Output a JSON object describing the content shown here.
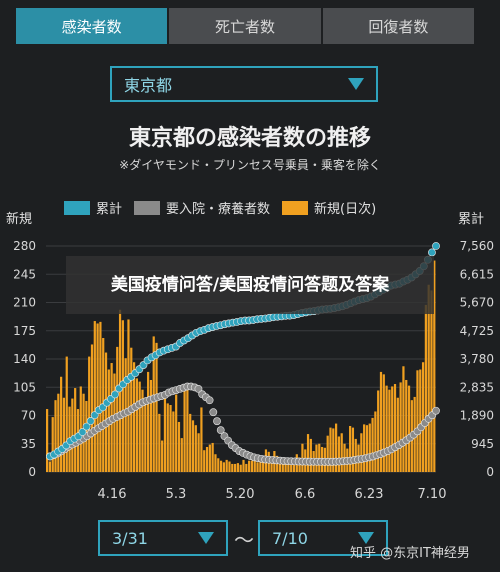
{
  "tabs": [
    {
      "label": "感染者数",
      "active": true
    },
    {
      "label": "死亡者数",
      "active": false
    },
    {
      "label": "回復者数",
      "active": false
    }
  ],
  "prefecture_select": {
    "value": "東京都"
  },
  "title": "東京都の感染者数の推移",
  "subtitle": "※ダイヤモンド・プリンセス号乗員・乗客を除く",
  "legend": [
    {
      "label": "累計",
      "color": "#2fa3bd"
    },
    {
      "label": "要入院・療養者数",
      "color": "#8a8a8a"
    },
    {
      "label": "新規(日次)",
      "color": "#f0a020"
    }
  ],
  "left_axis_title": "新規",
  "right_axis_title": "累計",
  "start_select": {
    "value": "3/31"
  },
  "range_separator": "〜",
  "end_select": {
    "value": "7/10"
  },
  "overlay_text": "美国疫情问答/美国疫情问答题及答案",
  "watermark": "知乎 @东京IT神经男",
  "chart_data": {
    "type": "bar",
    "x_ticks": [
      "4.16",
      "5.3",
      "5.20",
      "6.6",
      "6.23",
      "7.10"
    ],
    "left_axis": {
      "ticks": [
        0,
        35,
        70,
        105,
        140,
        175,
        210,
        245,
        280
      ],
      "ylim": [
        0,
        280
      ]
    },
    "right_axis": {
      "ticks": [
        "0",
        "945",
        "1,890",
        "2,835",
        "3,780",
        "4,725",
        "5,670",
        "6,615",
        "7,560"
      ],
      "ylim": [
        0,
        7560
      ]
    },
    "series": [
      {
        "name": "新規(日次)",
        "type": "bar",
        "values": [
          78,
          13,
          68,
          89,
          97,
          118,
          92,
          143,
          81,
          91,
          104,
          78,
          106,
          97,
          88,
          143,
          158,
          187,
          184,
          186,
          166,
          148,
          127,
          135,
          122,
          155,
          201,
          188,
          141,
          189,
          154,
          136,
          116,
          112,
          102,
          88,
          124,
          114,
          168,
          160,
          72,
          39,
          91,
          85,
          83,
          75,
          96,
          62,
          42,
          104,
          110,
          72,
          64,
          58,
          48,
          80,
          27,
          31,
          34,
          36,
          22,
          17,
          14,
          12,
          15,
          13,
          10,
          10,
          11,
          9,
          15,
          10,
          14,
          14,
          22,
          12,
          13,
          20,
          28,
          25,
          19,
          26,
          20,
          13,
          12,
          16,
          16,
          15,
          14,
          22,
          18,
          35,
          28,
          47,
          41,
          26,
          34,
          35,
          31,
          30,
          45,
          55,
          54,
          60,
          44,
          48,
          35,
          29,
          57,
          55,
          41,
          34,
          48,
          59,
          58,
          60,
          67,
          75,
          101,
          124,
          121,
          107,
          102,
          106,
          109,
          92,
          111,
          131,
          114,
          107,
          89,
          93,
          126,
          127,
          136,
          207,
          232,
          225,
          262
        ]
      },
      {
        "name": "累計",
        "type": "line",
        "values": [
          521,
          586,
          684,
          773,
          891,
          1033,
          1116,
          1196,
          1338,
          1519,
          1705,
          1902,
          2068,
          2165,
          2319,
          2446,
          2595,
          2796,
          2935,
          3082,
          3184,
          3307,
          3439,
          3577,
          3733,
          3836,
          3908,
          4002,
          4059,
          4106,
          4152,
          4196,
          4317,
          4400,
          4477,
          4568,
          4655,
          4712,
          4754,
          4810,
          4848,
          4883,
          4910,
          4944,
          4970,
          4997,
          5017,
          5047,
          5065,
          5070,
          5085,
          5108,
          5124,
          5136,
          5158,
          5179,
          5195,
          5207,
          5225,
          5231,
          5249,
          5283,
          5317,
          5342,
          5369,
          5383,
          5408,
          5433,
          5446,
          5462,
          5484,
          5511,
          5544,
          5592,
          5646,
          5703,
          5751,
          5785,
          5817,
          5868,
          5944,
          6017,
          6096,
          6172,
          6237,
          6270,
          6300,
          6373,
          6432,
          6507,
          6613,
          6725,
          6882,
          7100,
          7344,
          7560
        ]
      },
      {
        "name": "要入院・療養者数",
        "type": "line",
        "values": [
          521,
          560,
          620,
          690,
          760,
          850,
          920,
          980,
          1050,
          1120,
          1200,
          1290,
          1380,
          1460,
          1540,
          1620,
          1700,
          1780,
          1840,
          1900,
          1960,
          2020,
          2100,
          2180,
          2260,
          2330,
          2380,
          2420,
          2460,
          2500,
          2540,
          2580,
          2660,
          2700,
          2740,
          2780,
          2820,
          2860,
          2860,
          2830,
          2780,
          2600,
          2500,
          2400,
          2000,
          1700,
          1400,
          1200,
          1050,
          900,
          800,
          700,
          640,
          580,
          530,
          490,
          460,
          440,
          420,
          410,
          400,
          390,
          380,
          370,
          365,
          360,
          355,
          350,
          348,
          346,
          345,
          344,
          343,
          342,
          341,
          340,
          340,
          345,
          350,
          360,
          370,
          380,
          400,
          420,
          440,
          460,
          490,
          520,
          560,
          600,
          650,
          700,
          760,
          830,
          900,
          980,
          1060,
          1150,
          1250,
          1360,
          1500,
          1640,
          1780,
          1900,
          2050
        ]
      }
    ]
  }
}
